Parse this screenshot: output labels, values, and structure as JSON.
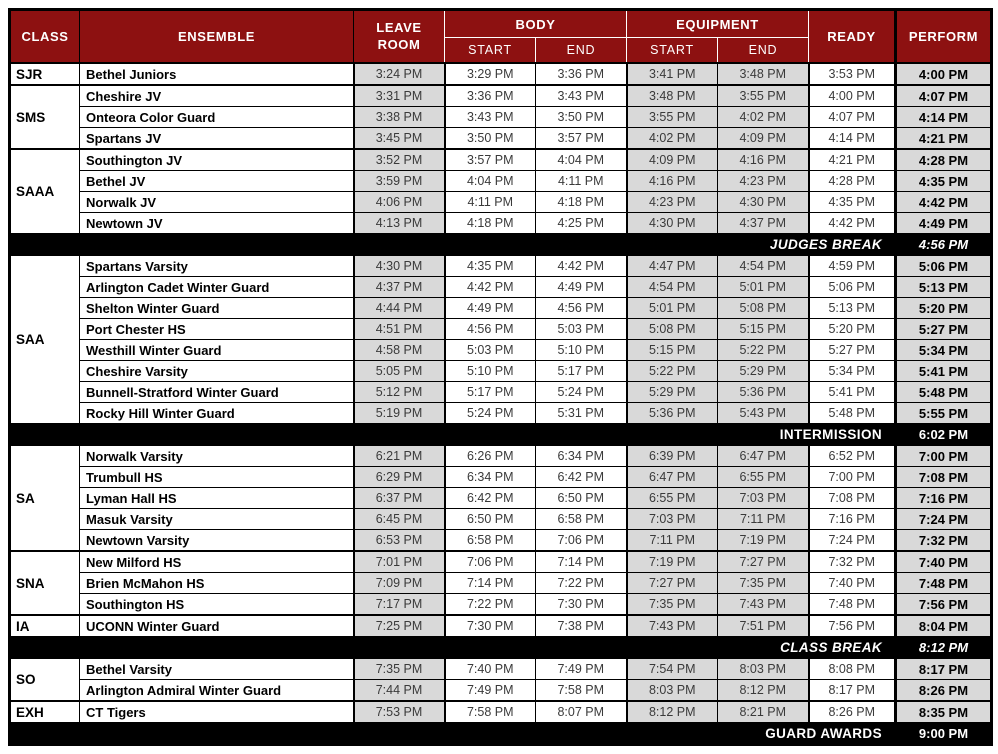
{
  "colors": {
    "header_bg": "#8D1111",
    "cell_gray": "#D9D9D9",
    "break_bg": "#000000",
    "header_text": "#FFFFFF"
  },
  "header": {
    "class": "CLASS",
    "ensemble": "ENSEMBLE",
    "leave_room": "LEAVE\nROOM",
    "body": "BODY",
    "equipment": "EQUIPMENT",
    "body_start": "START",
    "body_end": "END",
    "equip_start": "START",
    "equip_end": "END",
    "ready": "READY",
    "perform": "PERFORM"
  },
  "rows": [
    {
      "type": "entry",
      "class": "SJR",
      "class_span": 1,
      "ensemble": "Bethel Juniors",
      "leave_room": "3:24 PM",
      "body_start": "3:29 PM",
      "body_end": "3:36 PM",
      "equip_start": "3:41 PM",
      "equip_end": "3:48 PM",
      "ready": "3:53 PM",
      "perform": "4:00 PM"
    },
    {
      "type": "entry",
      "class": "SMS",
      "class_span": 3,
      "ensemble": "Cheshire JV",
      "leave_room": "3:31 PM",
      "body_start": "3:36 PM",
      "body_end": "3:43 PM",
      "equip_start": "3:48 PM",
      "equip_end": "3:55 PM",
      "ready": "4:00 PM",
      "perform": "4:07 PM"
    },
    {
      "type": "entry",
      "ensemble": "Onteora Color Guard",
      "leave_room": "3:38 PM",
      "body_start": "3:43 PM",
      "body_end": "3:50 PM",
      "equip_start": "3:55 PM",
      "equip_end": "4:02 PM",
      "ready": "4:07 PM",
      "perform": "4:14 PM"
    },
    {
      "type": "entry",
      "ensemble": "Spartans JV",
      "leave_room": "3:45 PM",
      "body_start": "3:50 PM",
      "body_end": "3:57 PM",
      "equip_start": "4:02 PM",
      "equip_end": "4:09 PM",
      "ready": "4:14 PM",
      "perform": "4:21 PM"
    },
    {
      "type": "entry",
      "class": "SAAA",
      "class_span": 4,
      "ensemble": "Southington JV",
      "leave_room": "3:52 PM",
      "body_start": "3:57 PM",
      "body_end": "4:04 PM",
      "equip_start": "4:09 PM",
      "equip_end": "4:16 PM",
      "ready": "4:21 PM",
      "perform": "4:28 PM"
    },
    {
      "type": "entry",
      "ensemble": "Bethel JV",
      "leave_room": "3:59 PM",
      "body_start": "4:04 PM",
      "body_end": "4:11 PM",
      "equip_start": "4:16 PM",
      "equip_end": "4:23 PM",
      "ready": "4:28 PM",
      "perform": "4:35 PM"
    },
    {
      "type": "entry",
      "ensemble": "Norwalk JV",
      "leave_room": "4:06 PM",
      "body_start": "4:11 PM",
      "body_end": "4:18 PM",
      "equip_start": "4:23 PM",
      "equip_end": "4:30 PM",
      "ready": "4:35 PM",
      "perform": "4:42 PM"
    },
    {
      "type": "entry",
      "ensemble": "Newtown JV",
      "leave_room": "4:13 PM",
      "body_start": "4:18 PM",
      "body_end": "4:25 PM",
      "equip_start": "4:30 PM",
      "equip_end": "4:37 PM",
      "ready": "4:42 PM",
      "perform": "4:49 PM"
    },
    {
      "type": "break",
      "style": "italic",
      "label": "JUDGES BREAK",
      "time": "4:56 PM"
    },
    {
      "type": "entry",
      "class": "SAA",
      "class_span": 8,
      "ensemble": "Spartans Varsity",
      "leave_room": "4:30 PM",
      "body_start": "4:35 PM",
      "body_end": "4:42 PM",
      "equip_start": "4:47 PM",
      "equip_end": "4:54 PM",
      "ready": "4:59 PM",
      "perform": "5:06 PM"
    },
    {
      "type": "entry",
      "ensemble": "Arlington Cadet Winter Guard",
      "leave_room": "4:37 PM",
      "body_start": "4:42 PM",
      "body_end": "4:49 PM",
      "equip_start": "4:54 PM",
      "equip_end": "5:01 PM",
      "ready": "5:06 PM",
      "perform": "5:13 PM"
    },
    {
      "type": "entry",
      "ensemble": "Shelton Winter Guard",
      "leave_room": "4:44 PM",
      "body_start": "4:49 PM",
      "body_end": "4:56 PM",
      "equip_start": "5:01 PM",
      "equip_end": "5:08 PM",
      "ready": "5:13 PM",
      "perform": "5:20 PM"
    },
    {
      "type": "entry",
      "ensemble": "Port Chester HS",
      "leave_room": "4:51 PM",
      "body_start": "4:56 PM",
      "body_end": "5:03 PM",
      "equip_start": "5:08 PM",
      "equip_end": "5:15 PM",
      "ready": "5:20 PM",
      "perform": "5:27 PM"
    },
    {
      "type": "entry",
      "ensemble": "Westhill Winter Guard",
      "leave_room": "4:58 PM",
      "body_start": "5:03 PM",
      "body_end": "5:10 PM",
      "equip_start": "5:15 PM",
      "equip_end": "5:22 PM",
      "ready": "5:27 PM",
      "perform": "5:34 PM"
    },
    {
      "type": "entry",
      "ensemble": "Cheshire Varsity",
      "leave_room": "5:05 PM",
      "body_start": "5:10 PM",
      "body_end": "5:17 PM",
      "equip_start": "5:22 PM",
      "equip_end": "5:29 PM",
      "ready": "5:34 PM",
      "perform": "5:41 PM"
    },
    {
      "type": "entry",
      "ensemble": "Bunnell-Stratford Winter Guard",
      "leave_room": "5:12 PM",
      "body_start": "5:17 PM",
      "body_end": "5:24 PM",
      "equip_start": "5:29 PM",
      "equip_end": "5:36 PM",
      "ready": "5:41 PM",
      "perform": "5:48 PM"
    },
    {
      "type": "entry",
      "ensemble": "Rocky Hill Winter Guard",
      "leave_room": "5:19 PM",
      "body_start": "5:24 PM",
      "body_end": "5:31 PM",
      "equip_start": "5:36 PM",
      "equip_end": "5:43 PM",
      "ready": "5:48 PM",
      "perform": "5:55 PM"
    },
    {
      "type": "break",
      "style": "bold",
      "label": "INTERMISSION",
      "time": "6:02 PM"
    },
    {
      "type": "entry",
      "class": "SA",
      "class_span": 5,
      "ensemble": "Norwalk Varsity",
      "leave_room": "6:21 PM",
      "body_start": "6:26 PM",
      "body_end": "6:34 PM",
      "equip_start": "6:39 PM",
      "equip_end": "6:47 PM",
      "ready": "6:52 PM",
      "perform": "7:00 PM"
    },
    {
      "type": "entry",
      "ensemble": "Trumbull HS",
      "leave_room": "6:29 PM",
      "body_start": "6:34 PM",
      "body_end": "6:42 PM",
      "equip_start": "6:47 PM",
      "equip_end": "6:55 PM",
      "ready": "7:00 PM",
      "perform": "7:08 PM"
    },
    {
      "type": "entry",
      "ensemble": "Lyman Hall HS",
      "leave_room": "6:37 PM",
      "body_start": "6:42 PM",
      "body_end": "6:50 PM",
      "equip_start": "6:55 PM",
      "equip_end": "7:03 PM",
      "ready": "7:08 PM",
      "perform": "7:16 PM"
    },
    {
      "type": "entry",
      "ensemble": "Masuk Varsity",
      "leave_room": "6:45 PM",
      "body_start": "6:50 PM",
      "body_end": "6:58 PM",
      "equip_start": "7:03 PM",
      "equip_end": "7:11 PM",
      "ready": "7:16 PM",
      "perform": "7:24 PM"
    },
    {
      "type": "entry",
      "ensemble": "Newtown Varsity",
      "leave_room": "6:53 PM",
      "body_start": "6:58 PM",
      "body_end": "7:06 PM",
      "equip_start": "7:11 PM",
      "equip_end": "7:19 PM",
      "ready": "7:24 PM",
      "perform": "7:32 PM"
    },
    {
      "type": "entry",
      "class": "SNA",
      "class_span": 3,
      "ensemble": "New Milford HS",
      "leave_room": "7:01 PM",
      "body_start": "7:06 PM",
      "body_end": "7:14 PM",
      "equip_start": "7:19 PM",
      "equip_end": "7:27 PM",
      "ready": "7:32 PM",
      "perform": "7:40 PM"
    },
    {
      "type": "entry",
      "ensemble": "Brien McMahon HS",
      "leave_room": "7:09 PM",
      "body_start": "7:14 PM",
      "body_end": "7:22 PM",
      "equip_start": "7:27 PM",
      "equip_end": "7:35 PM",
      "ready": "7:40 PM",
      "perform": "7:48 PM"
    },
    {
      "type": "entry",
      "ensemble": "Southington HS",
      "leave_room": "7:17 PM",
      "body_start": "7:22 PM",
      "body_end": "7:30 PM",
      "equip_start": "7:35 PM",
      "equip_end": "7:43 PM",
      "ready": "7:48 PM",
      "perform": "7:56 PM"
    },
    {
      "type": "entry",
      "class": "IA",
      "class_span": 1,
      "ensemble": "UCONN Winter Guard",
      "leave_room": "7:25 PM",
      "body_start": "7:30 PM",
      "body_end": "7:38 PM",
      "equip_start": "7:43 PM",
      "equip_end": "7:51 PM",
      "ready": "7:56 PM",
      "perform": "8:04 PM"
    },
    {
      "type": "break",
      "style": "italic",
      "label": "CLASS BREAK",
      "time": "8:12 PM"
    },
    {
      "type": "entry",
      "class": "SO",
      "class_span": 2,
      "ensemble": "Bethel Varsity",
      "leave_room": "7:35 PM",
      "body_start": "7:40 PM",
      "body_end": "7:49 PM",
      "equip_start": "7:54 PM",
      "equip_end": "8:03 PM",
      "ready": "8:08 PM",
      "perform": "8:17 PM"
    },
    {
      "type": "entry",
      "ensemble": "Arlington Admiral Winter Guard",
      "leave_room": "7:44 PM",
      "body_start": "7:49 PM",
      "body_end": "7:58 PM",
      "equip_start": "8:03 PM",
      "equip_end": "8:12 PM",
      "ready": "8:17 PM",
      "perform": "8:26 PM"
    },
    {
      "type": "entry",
      "class": "EXH",
      "class_span": 1,
      "ensemble": "CT Tigers",
      "leave_room": "7:53 PM",
      "body_start": "7:58 PM",
      "body_end": "8:07 PM",
      "equip_start": "8:12 PM",
      "equip_end": "8:21 PM",
      "ready": "8:26 PM",
      "perform": "8:35 PM"
    },
    {
      "type": "break",
      "style": "bold",
      "label": "GUARD AWARDS",
      "time": "9:00 PM"
    }
  ]
}
